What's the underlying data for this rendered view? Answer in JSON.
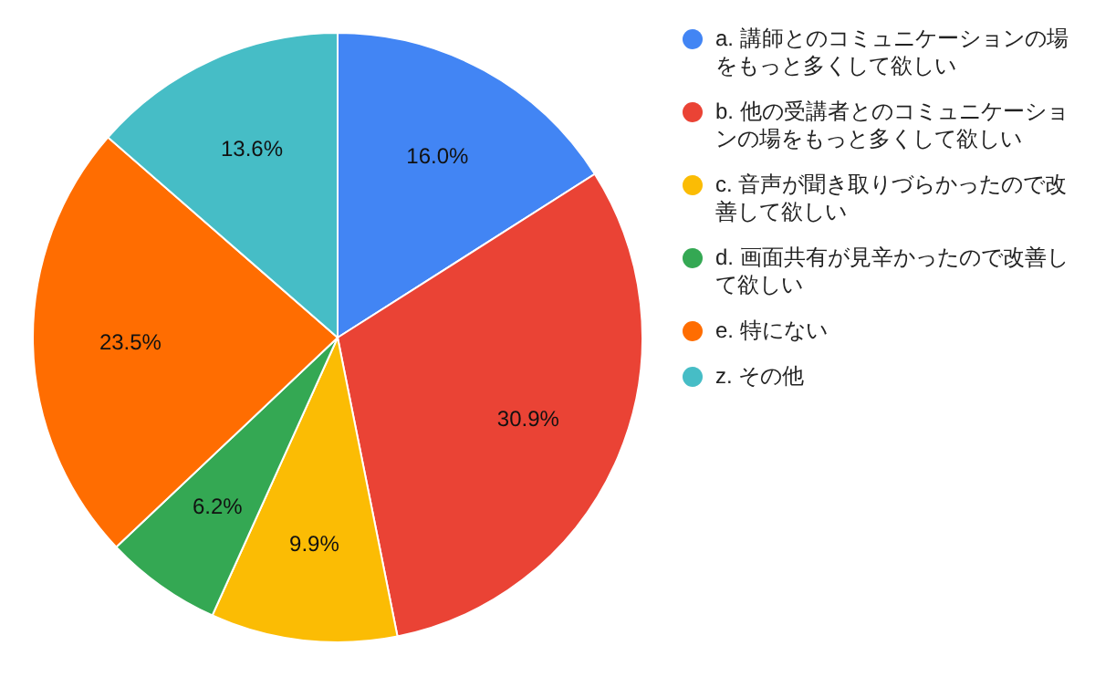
{
  "chart_data": {
    "type": "pie",
    "categories": [
      "a. 講師とのコミュニケーションの場をもっと多くして欲しい",
      "b. 他の受講者とのコミュニケーションの場をもっと多くして欲しい",
      "c. 音声が聞き取りづらかったので改善して欲しい",
      "d. 画面共有が見辛かったので改善して欲しい",
      "e. 特にない",
      "z. その他"
    ],
    "values": [
      16.0,
      30.9,
      9.9,
      6.2,
      23.5,
      13.6
    ],
    "value_labels": [
      "16.0%",
      "30.9%",
      "9.9%",
      "6.2%",
      "23.5%",
      "13.6%"
    ],
    "colors": [
      "#4285f4",
      "#ea4335",
      "#fbbc04",
      "#34a853",
      "#ff6d01",
      "#46bdc6"
    ],
    "legend": "right"
  }
}
